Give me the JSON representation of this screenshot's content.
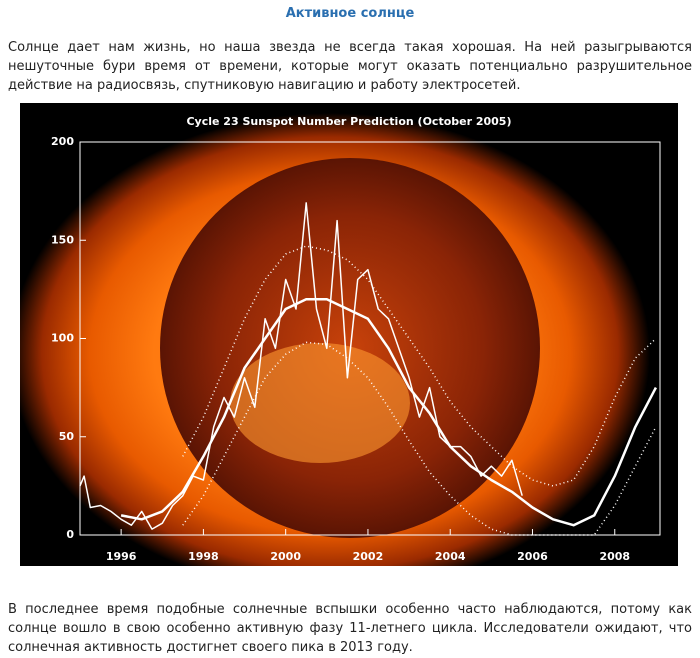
{
  "header": {
    "title": "Активное солнце"
  },
  "paragraphs": [
    "Солнце дает нам жизнь, но наша звезда не всегда такая хорошая. На ней разыгрываются нешуточные бури время от времени, которые могут оказать потенциально разрушительное действие на радиосвязь, спутниковую навигацию и работу электросетей.",
    "В последнее время подобные солнечные вспышки особенно часто наблюдаются, потому как солнце вошло в свою особенно активную фазу 11-летнего цикла. Исследователи ожидают, что солнечная активность достигнет своего пика в 2013 году."
  ],
  "chart_data": {
    "type": "line",
    "title": "Cycle 23 Sunspot Number Prediction (October 2005)",
    "xlim": [
      1995,
      2009.1
    ],
    "xticks": [
      1996,
      1998,
      2000,
      2002,
      2004,
      2006,
      2008
    ],
    "ylim": [
      0,
      200
    ],
    "yticks": [
      0,
      50,
      100,
      150,
      200
    ],
    "series": [
      {
        "color": "#ffffff",
        "style": "solid",
        "width": 1.5,
        "x": [
          1995.0,
          1995.1,
          1995.25,
          1995.5,
          1995.75,
          1996.0,
          1996.25,
          1996.5,
          1996.75,
          1997.0,
          1997.25,
          1997.5,
          1997.75,
          1998.0,
          1998.25,
          1998.5,
          1998.75,
          1999.0,
          1999.25,
          1999.5,
          1999.75,
          2000.0,
          2000.25,
          2000.5,
          2000.75,
          2001.0,
          2001.25,
          2001.5,
          2001.75,
          2002.0,
          2002.25,
          2002.5,
          2002.75,
          2003.0,
          2003.25,
          2003.5,
          2003.75,
          2004.0,
          2004.25,
          2004.5,
          2004.75,
          2005.0,
          2005.25,
          2005.5,
          2005.75
        ],
        "values": [
          25,
          30,
          14,
          15,
          12,
          8,
          5,
          12,
          3,
          6,
          15,
          20,
          30,
          28,
          55,
          70,
          60,
          80,
          65,
          110,
          95,
          130,
          115,
          169,
          115,
          95,
          160,
          80,
          130,
          135,
          115,
          110,
          95,
          80,
          60,
          75,
          50,
          45,
          45,
          40,
          30,
          35,
          30,
          38,
          20
        ]
      },
      {
        "color": "#ffffff",
        "style": "solid",
        "width": 2.5,
        "x": [
          1996.0,
          1996.5,
          1997.0,
          1997.5,
          1998.0,
          1998.5,
          1999.0,
          1999.5,
          2000.0,
          2000.5,
          2001.0,
          2001.5,
          2002.0,
          2002.5,
          2003.0,
          2003.5,
          2004.0,
          2004.5,
          2005.0,
          2005.5,
          2006.0,
          2006.5,
          2007.0,
          2007.5,
          2008.0,
          2008.5,
          2009.0
        ],
        "values": [
          10,
          8,
          12,
          22,
          40,
          60,
          85,
          100,
          115,
          120,
          120,
          115,
          110,
          95,
          75,
          62,
          45,
          35,
          28,
          22,
          14,
          8,
          5,
          10,
          30,
          55,
          75
        ]
      },
      {
        "color": "#ffffff",
        "style": "dotted",
        "width": 1.5,
        "x": [
          1997.5,
          1998.0,
          1998.5,
          1999.0,
          1999.5,
          2000.0,
          2000.5,
          2001.0,
          2001.5,
          2002.0,
          2002.5,
          2003.0,
          2003.5,
          2004.0,
          2004.5,
          2005.0,
          2005.5,
          2006.0,
          2006.5,
          2007.0,
          2007.5,
          2008.0,
          2008.5,
          2009.0
        ],
        "values": [
          40,
          60,
          85,
          110,
          130,
          143,
          147,
          145,
          140,
          130,
          115,
          100,
          85,
          68,
          55,
          45,
          35,
          28,
          25,
          28,
          45,
          70,
          90,
          100
        ]
      },
      {
        "color": "#ffffff",
        "style": "dotted",
        "width": 1.5,
        "x": [
          1997.5,
          1998.0,
          1998.5,
          1999.0,
          1999.5,
          2000.0,
          2000.5,
          2001.0,
          2001.5,
          2002.0,
          2002.5,
          2003.0,
          2003.5,
          2004.0,
          2004.5,
          2005.0,
          2005.5,
          2007.5,
          2008.0,
          2008.5,
          2009.0
        ],
        "values": [
          5,
          20,
          40,
          60,
          80,
          92,
          98,
          97,
          90,
          80,
          65,
          48,
          32,
          20,
          10,
          3,
          0,
          0,
          15,
          35,
          55
        ]
      }
    ]
  }
}
